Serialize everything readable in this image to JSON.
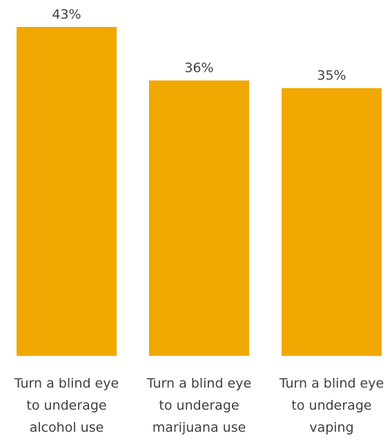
{
  "chart_data": {
    "type": "bar",
    "categories": [
      [
        "Turn a blind eye",
        "to underage",
        "alcohol use"
      ],
      [
        "Turn a blind eye",
        "to underage",
        "marijuana use"
      ],
      [
        "Turn a blind eye",
        "to underage",
        "vaping"
      ]
    ],
    "values": [
      43,
      36,
      35
    ],
    "value_labels": [
      "43%",
      "36%",
      "35%"
    ],
    "ylim": [
      0,
      43
    ],
    "bar_color": "#F0A800",
    "text_color": "#404040",
    "grid": false,
    "legend": "none"
  }
}
